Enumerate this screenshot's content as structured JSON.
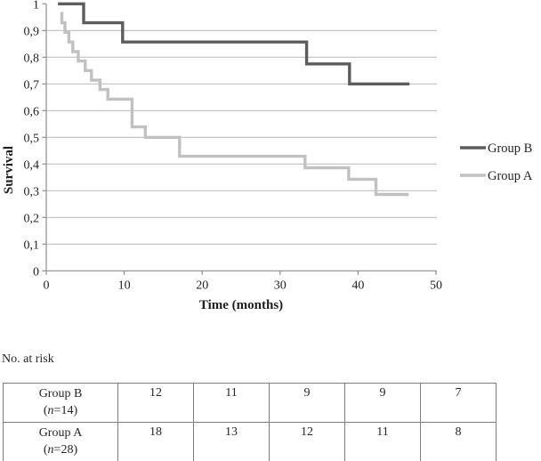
{
  "chart_data": {
    "type": "line",
    "subtype": "kaplan-meier-step",
    "title": "",
    "xlabel": "Time (months)",
    "ylabel": "Survival",
    "xlim": [
      0,
      50
    ],
    "ylim": [
      0,
      1
    ],
    "xticks": [
      0,
      10,
      20,
      30,
      40,
      50
    ],
    "ytick_step": 0.1,
    "ytick_labels": [
      "0",
      "0,1",
      "0,2",
      "0,3",
      "0,4",
      "0,5",
      "0,6",
      "0,7",
      "0,8",
      "0,9",
      "1"
    ],
    "grid": "horizontal",
    "legend_position": "right",
    "colors": {
      "grid": "#b8b8b8",
      "axis": "#8c8c8c",
      "group_b": "#5d5d5d",
      "group_a": "#c1c1c1"
    },
    "series": [
      {
        "name": "Group B",
        "color": "#5d5d5d",
        "start": [
          1.5,
          1.0
        ],
        "steps": [
          [
            4.8,
            0.929
          ],
          [
            9.8,
            0.857
          ],
          [
            33.4,
            0.775
          ],
          [
            38.9,
            0.7
          ]
        ],
        "end": 46.6
      },
      {
        "name": "Group A",
        "color": "#c1c1c1",
        "start": [
          1.8,
          0.964
        ],
        "steps": [
          [
            2.0,
            0.929
          ],
          [
            2.4,
            0.893
          ],
          [
            2.9,
            0.857
          ],
          [
            3.4,
            0.821
          ],
          [
            4.1,
            0.786
          ],
          [
            5.0,
            0.75
          ],
          [
            5.8,
            0.714
          ],
          [
            6.9,
            0.679
          ],
          [
            7.9,
            0.643
          ],
          [
            11.0,
            0.539
          ],
          [
            12.7,
            0.5
          ],
          [
            17.1,
            0.429
          ],
          [
            33.2,
            0.386
          ],
          [
            38.8,
            0.343
          ],
          [
            42.3,
            0.286
          ]
        ],
        "end": 46.5
      }
    ]
  },
  "risk_table": {
    "caption": "No. at risk",
    "rows": [
      {
        "name": "Group B",
        "n_label": "(n=14)",
        "values": [
          "12",
          "11",
          "9",
          "9",
          "7"
        ]
      },
      {
        "name": "Group A",
        "n_label": "(n=28)",
        "values": [
          "18",
          "13",
          "12",
          "11",
          "8"
        ]
      }
    ]
  }
}
